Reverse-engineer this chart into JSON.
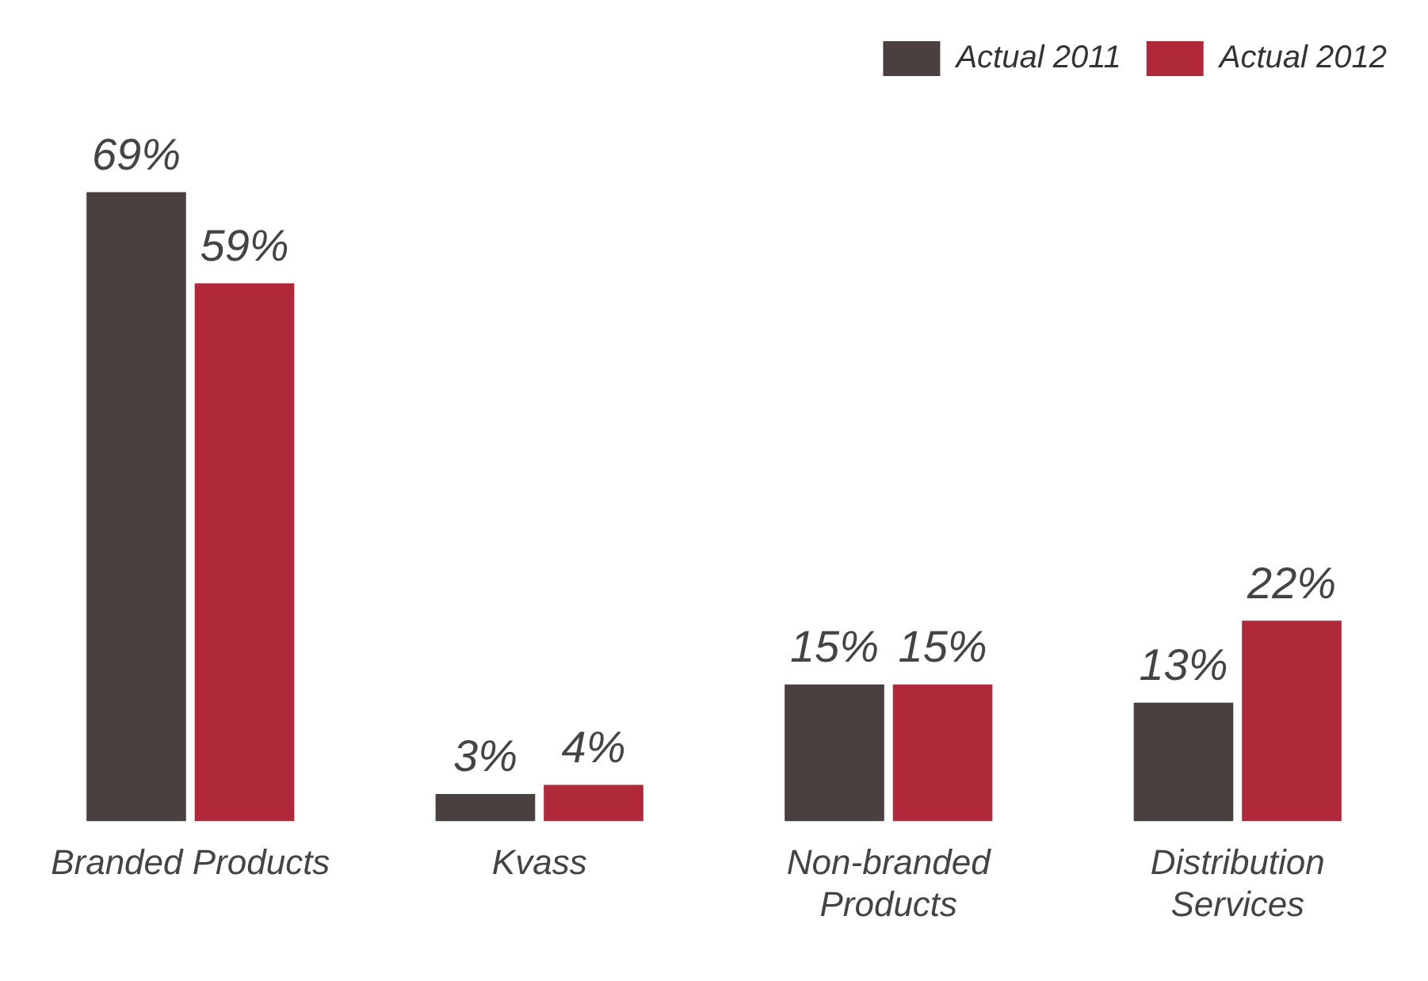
{
  "chart_data": {
    "type": "bar",
    "categories": [
      "Branded Products",
      "Kvass",
      "Non-branded Products",
      "Distribution Services"
    ],
    "series": [
      {
        "name": "Actual 2011",
        "color": "#4b4040",
        "values": [
          69,
          3,
          15,
          13
        ],
        "value_labels": [
          "69%",
          "3%",
          "15%",
          "13%"
        ]
      },
      {
        "name": "Actual 2012",
        "color": "#b0293a",
        "values": [
          59,
          4,
          15,
          22
        ],
        "value_labels": [
          "59%",
          "4%",
          "15%",
          "22%"
        ]
      }
    ],
    "legend": "top right"
  }
}
